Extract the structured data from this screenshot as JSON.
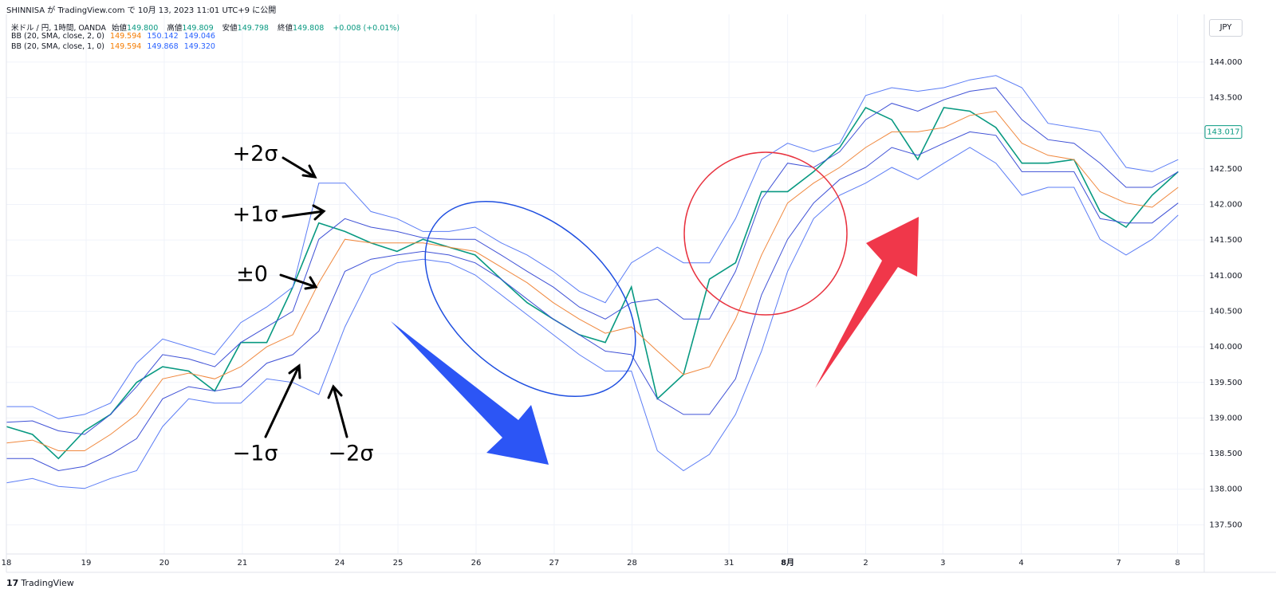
{
  "header": {
    "byline": "SHINNISA が TradingView.com で 10月 13, 2023 11:01 UTC+9 に公開",
    "currency": "JPY",
    "brand": "TradingView"
  },
  "legend": {
    "symbol": "米ドル / 円, 1時間, OANDA",
    "ohlc": [
      {
        "label": "始値",
        "value": "149.800"
      },
      {
        "label": "高値",
        "value": "149.809"
      },
      {
        "label": "安値",
        "value": "149.798"
      },
      {
        "label": "終値",
        "value": "149.808"
      }
    ],
    "change": "+0.008 (+0.01%)",
    "indicators": [
      {
        "label": "BB (20, SMA, close, 2, 0)",
        "values": [
          "149.594",
          "150.142",
          "149.046"
        ]
      },
      {
        "label": "BB (20, SMA, close, 1, 0)",
        "values": [
          "149.594",
          "149.868",
          "149.320"
        ]
      }
    ]
  },
  "chart_data": {
    "type": "line",
    "x": [
      0,
      8,
      16,
      24,
      32,
      40,
      48,
      56,
      64,
      72,
      80,
      88,
      96,
      104,
      112,
      120,
      128,
      136,
      144,
      152,
      160,
      168,
      176,
      184,
      192,
      200,
      208,
      216,
      224,
      232,
      240,
      248,
      256,
      264,
      272,
      280,
      288,
      296,
      304,
      312,
      320,
      328,
      336,
      344,
      352,
      360
    ],
    "series": [
      {
        "color": "#089981",
        "values": [
          138.88,
          138.77,
          138.43,
          138.82,
          139.05,
          139.5,
          139.72,
          139.66,
          139.38,
          140.06,
          140.06,
          140.84,
          141.74,
          141.62,
          141.46,
          141.34,
          141.51,
          141.4,
          141.29,
          140.95,
          140.62,
          140.39,
          140.17,
          140.06,
          140.84,
          139.27,
          139.61,
          140.95,
          141.18,
          142.18,
          142.18,
          142.46,
          142.8,
          143.36,
          143.19,
          142.63,
          143.36,
          143.31,
          143.08,
          142.58,
          142.58,
          142.63,
          141.9,
          141.68,
          142.13,
          142.46
        ]
      },
      {
        "color": "#5b7cf5",
        "values": [
          139.16,
          139.16,
          138.99,
          139.05,
          139.21,
          139.77,
          140.11,
          140.0,
          139.89,
          140.34,
          140.56,
          140.84,
          142.3,
          142.3,
          141.9,
          141.8,
          141.62,
          141.62,
          141.68,
          141.46,
          141.29,
          141.06,
          140.78,
          140.62,
          141.18,
          141.4,
          141.18,
          141.18,
          141.8,
          142.63,
          142.86,
          142.74,
          142.86,
          143.53,
          143.64,
          143.59,
          143.64,
          143.75,
          143.81,
          143.64,
          143.14,
          143.08,
          143.02,
          142.52,
          142.46,
          142.63
        ]
      },
      {
        "color": "#3f51d6",
        "values": [
          138.94,
          138.96,
          138.82,
          138.77,
          139.05,
          139.44,
          139.89,
          139.83,
          139.72,
          140.06,
          140.28,
          140.5,
          141.51,
          141.8,
          141.68,
          141.62,
          141.53,
          141.51,
          141.51,
          141.29,
          141.06,
          140.84,
          140.56,
          140.39,
          140.62,
          140.67,
          140.39,
          140.39,
          141.06,
          142.07,
          142.58,
          142.52,
          142.74,
          143.19,
          143.42,
          143.31,
          143.47,
          143.59,
          143.64,
          143.19,
          142.91,
          142.86,
          142.58,
          142.24,
          142.24,
          142.46
        ]
      },
      {
        "color": "#f0883e",
        "values": [
          138.65,
          138.69,
          138.54,
          138.54,
          138.77,
          139.05,
          139.55,
          139.63,
          139.55,
          139.72,
          140.0,
          140.17,
          140.9,
          141.51,
          141.46,
          141.46,
          141.46,
          141.4,
          141.34,
          141.12,
          140.9,
          140.62,
          140.39,
          140.19,
          140.28,
          139.94,
          139.61,
          139.72,
          140.39,
          141.29,
          142.02,
          142.3,
          142.52,
          142.8,
          143.02,
          143.02,
          143.08,
          143.25,
          143.31,
          142.86,
          142.69,
          142.63,
          142.18,
          142.02,
          141.96,
          142.24
        ]
      },
      {
        "color": "#3f51d6",
        "values": [
          138.43,
          138.43,
          138.26,
          138.32,
          138.49,
          138.71,
          139.27,
          139.44,
          139.38,
          139.44,
          139.77,
          139.89,
          140.22,
          141.06,
          141.23,
          141.29,
          141.34,
          141.29,
          141.18,
          140.95,
          140.67,
          140.39,
          140.17,
          139.94,
          139.89,
          139.27,
          139.05,
          139.05,
          139.55,
          140.73,
          141.51,
          142.02,
          142.35,
          142.52,
          142.8,
          142.69,
          142.86,
          143.02,
          142.97,
          142.46,
          142.46,
          142.46,
          141.8,
          141.74,
          141.74,
          142.02
        ]
      },
      {
        "color": "#5b7cf5",
        "values": [
          138.09,
          138.15,
          138.04,
          138.01,
          138.15,
          138.26,
          138.88,
          139.27,
          139.21,
          139.21,
          139.55,
          139.5,
          139.33,
          140.28,
          141.01,
          141.18,
          141.23,
          141.18,
          141.01,
          140.73,
          140.45,
          140.17,
          139.89,
          139.66,
          139.66,
          138.54,
          138.26,
          138.49,
          139.05,
          139.94,
          141.06,
          141.8,
          142.13,
          142.3,
          142.52,
          142.35,
          142.58,
          142.8,
          142.58,
          142.13,
          142.24,
          142.24,
          141.51,
          141.29,
          141.51,
          141.85
        ]
      }
    ],
    "xlim": [
      0,
      368
    ],
    "xticks": [
      {
        "value": 0,
        "label": "18"
      },
      {
        "value": 24.5,
        "label": "19"
      },
      {
        "value": 48.5,
        "label": "20"
      },
      {
        "value": 72.5,
        "label": "21"
      },
      {
        "value": 102.4,
        "label": "24"
      },
      {
        "value": 120.3,
        "label": "25"
      },
      {
        "value": 144.3,
        "label": "26"
      },
      {
        "value": 168.3,
        "label": "27"
      },
      {
        "value": 192.2,
        "label": "28"
      },
      {
        "value": 222,
        "label": "31"
      },
      {
        "value": 240,
        "label": "8月"
      },
      {
        "value": 264,
        "label": "2"
      },
      {
        "value": 287.7,
        "label": "3"
      },
      {
        "value": 311.8,
        "label": "4"
      },
      {
        "value": 341.7,
        "label": "7"
      },
      {
        "value": 359.8,
        "label": "8"
      }
    ],
    "ylim": [
      137.09,
      144.67
    ],
    "yticks": [
      {
        "value": 137.5,
        "label": "137.500"
      },
      {
        "value": 138,
        "label": "138.000"
      },
      {
        "value": 138.5,
        "label": "138.500"
      },
      {
        "value": 139,
        "label": "139.000"
      },
      {
        "value": 139.5,
        "label": "139.500"
      },
      {
        "value": 140,
        "label": "140.000"
      },
      {
        "value": 140.5,
        "label": "140.500"
      },
      {
        "value": 141,
        "label": "141.000"
      },
      {
        "value": 141.5,
        "label": "141.500"
      },
      {
        "value": 142,
        "label": "142.000"
      },
      {
        "value": 142.5,
        "label": "142.500"
      },
      {
        "value": 143,
        "label": "143.000"
      },
      {
        "value": 143.5,
        "label": "143.500"
      },
      {
        "value": 144,
        "label": "144.000"
      }
    ],
    "price_tag": {
      "value": 143.017,
      "label": "143.017",
      "color": "#089981"
    },
    "grid": true,
    "annotations": [
      "+2σ",
      "+1σ",
      "±0",
      "−1σ",
      "−2σ"
    ]
  }
}
